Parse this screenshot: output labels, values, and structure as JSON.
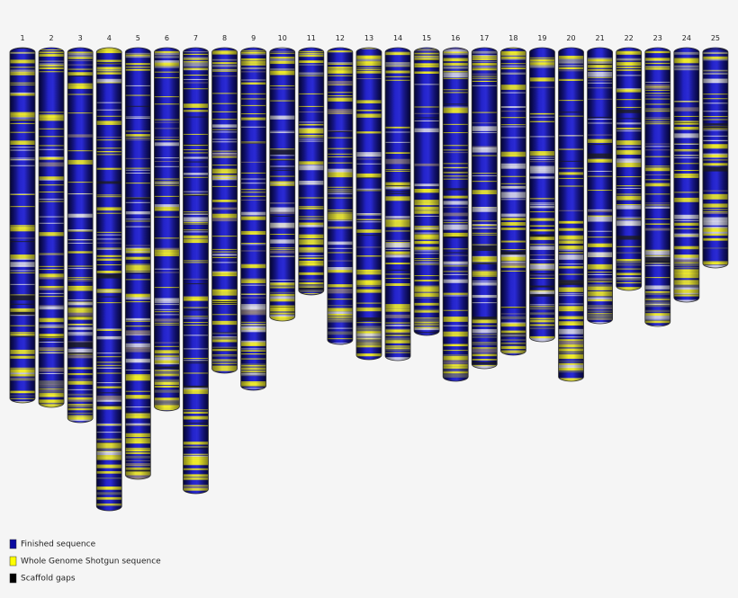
{
  "chromosomes": [
    "1",
    "2",
    "3",
    "4",
    "5",
    "6",
    "7",
    "8",
    "9",
    "10",
    "11",
    "12",
    "13",
    "14",
    "15",
    "16",
    "17",
    "18",
    "19",
    "20",
    "21",
    "22",
    "23",
    "24",
    "25"
  ],
  "legend": [
    {
      "label": "Finished sequence",
      "color": "#0a0aa0"
    },
    {
      "label": "Whole Genome Shotgun sequence",
      "color": "#ffff00"
    },
    {
      "label": "Scaffold gaps",
      "color": "#000000"
    }
  ]
}
